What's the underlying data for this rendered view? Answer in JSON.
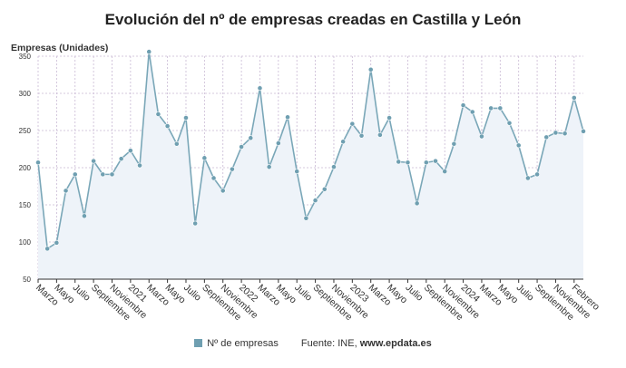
{
  "chart_data": {
    "type": "area",
    "title": "Evolución del nº de empresas creadas en Castilla y León",
    "ylabel": "Empresas (Unidades)",
    "xlabel": "",
    "ylim": [
      50,
      350
    ],
    "yticks": [
      50,
      100,
      150,
      200,
      250,
      300,
      350
    ],
    "series": [
      {
        "name": "Nº de empresas",
        "values": [
          207,
          91,
          99,
          169,
          191,
          135,
          209,
          191,
          191,
          212,
          223,
          203,
          356,
          272,
          256,
          232,
          267,
          125,
          213,
          186,
          169,
          198,
          228,
          240,
          307,
          201,
          233,
          268,
          195,
          132,
          156,
          171,
          201,
          235,
          259,
          243,
          332,
          244,
          267,
          208,
          207,
          152,
          207,
          209,
          195,
          232,
          284,
          275,
          242,
          280,
          280,
          260,
          230,
          186,
          191,
          241,
          247,
          246,
          294,
          249
        ]
      }
    ],
    "xticks": [
      {
        "i": 0,
        "label": "Marzo"
      },
      {
        "i": 2,
        "label": "Mayo"
      },
      {
        "i": 4,
        "label": "Julio"
      },
      {
        "i": 6,
        "label": "Septiembre"
      },
      {
        "i": 8,
        "label": "Noviembre"
      },
      {
        "i": 10,
        "label": "2021"
      },
      {
        "i": 12,
        "label": "Marzo"
      },
      {
        "i": 14,
        "label": "Mayo"
      },
      {
        "i": 16,
        "label": "Julio"
      },
      {
        "i": 18,
        "label": "Septiembre"
      },
      {
        "i": 20,
        "label": "Noviembre"
      },
      {
        "i": 22,
        "label": "2022"
      },
      {
        "i": 24,
        "label": "Marzo"
      },
      {
        "i": 26,
        "label": "Mayo"
      },
      {
        "i": 28,
        "label": "Julio"
      },
      {
        "i": 30,
        "label": "Septiembre"
      },
      {
        "i": 32,
        "label": "Noviembre"
      },
      {
        "i": 34,
        "label": "2023"
      },
      {
        "i": 36,
        "label": "Marzo"
      },
      {
        "i": 38,
        "label": "Mayo"
      },
      {
        "i": 40,
        "label": "Julio"
      },
      {
        "i": 42,
        "label": "Septiembre"
      },
      {
        "i": 44,
        "label": "Noviembre"
      },
      {
        "i": 46,
        "label": "2024"
      },
      {
        "i": 48,
        "label": "Marzo"
      },
      {
        "i": 50,
        "label": "Mayo"
      },
      {
        "i": 52,
        "label": "Julio"
      },
      {
        "i": 54,
        "label": "Septiembre"
      },
      {
        "i": 56,
        "label": "Noviembre"
      },
      {
        "i": 58,
        "label": "Febrero"
      }
    ],
    "grid": true,
    "legend": "bottom-center",
    "colors": {
      "line": "#7aa7b8",
      "marker": "#6f9fb1",
      "fill": "#eef3f9",
      "grid": "#c9b9d4",
      "axis": "#333333"
    }
  },
  "legend": {
    "series_label": "Nº de empresas",
    "source_prefix": "Fuente: INE, ",
    "source_site": "www.epdata.es"
  }
}
